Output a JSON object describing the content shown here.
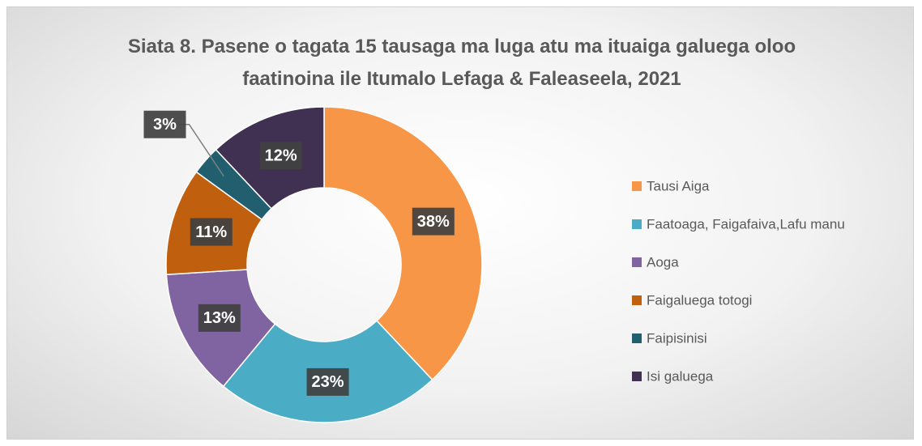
{
  "chart_data": {
    "type": "donut",
    "title": "Siata 8. Pasene o tagata 15 tausaga ma luga atu ma ituaiga galuega oloo faatinoina ile Itumalo Lefaga & Faleaseela, 2021",
    "categories": [
      "Tausi Aiga",
      "Faatoaga, Faigafaiva,Lafu manu",
      "Aoga",
      "Faigaluega totogi",
      "Faipisinisi",
      "Isi galuega"
    ],
    "values": [
      38,
      23,
      13,
      11,
      3,
      12
    ],
    "value_labels": [
      "38%",
      "23%",
      "13%",
      "11%",
      "3%",
      "12%"
    ],
    "colors": [
      "#f79646",
      "#4bacc6",
      "#8064a2",
      "#c0600e",
      "#215f6e",
      "#403152"
    ],
    "legend": "right"
  }
}
